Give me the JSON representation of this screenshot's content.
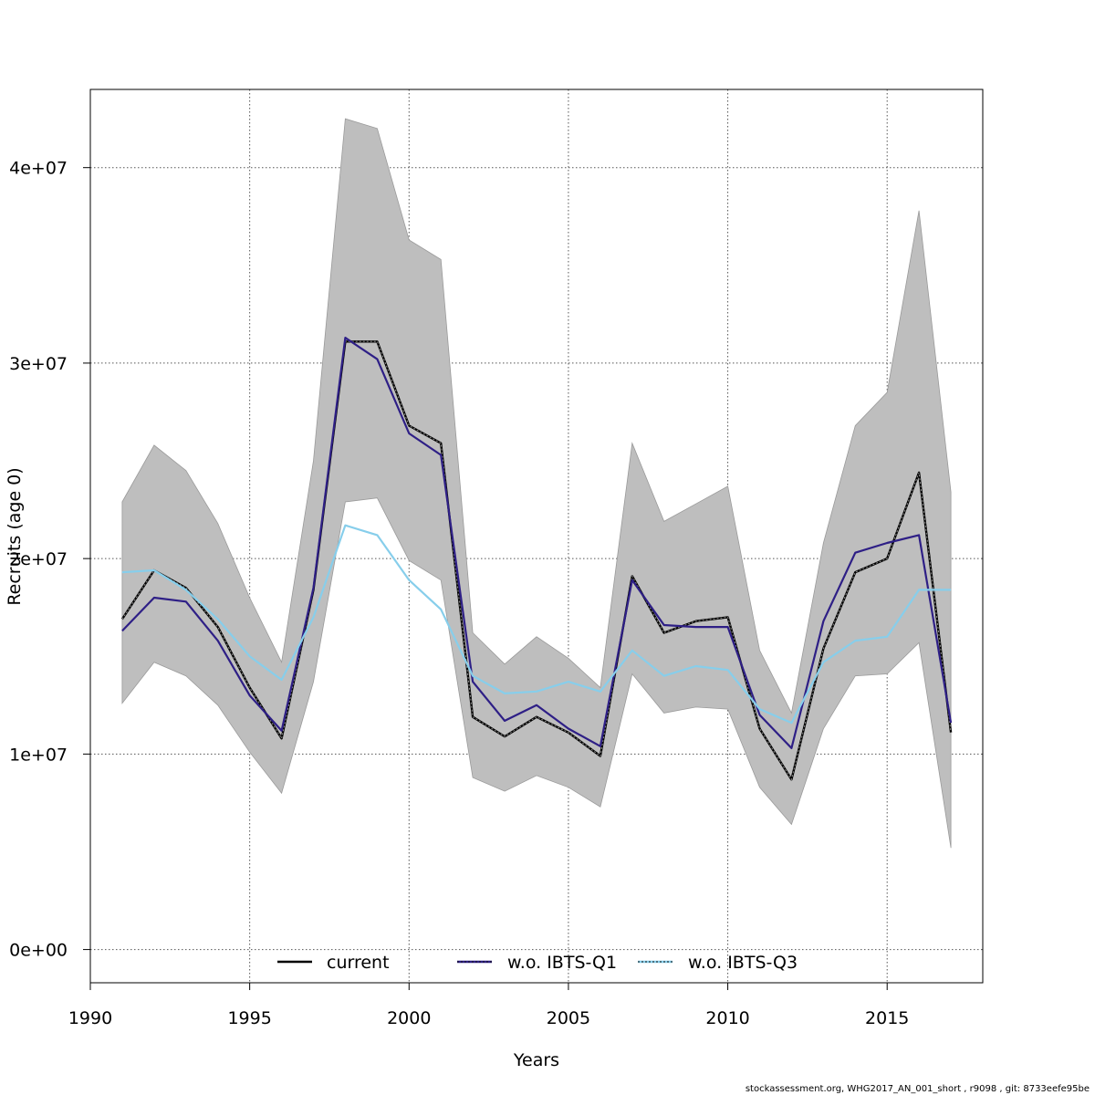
{
  "chart_data": {
    "type": "line",
    "title": "",
    "xlabel": "Years",
    "ylabel": "Recruits (age 0)",
    "xlim": [
      1990,
      2018
    ],
    "ylim": [
      -1700000,
      44000000
    ],
    "x_ticks": [
      1990,
      1995,
      2000,
      2005,
      2010,
      2015
    ],
    "x_tick_labels": [
      "1990",
      "1995",
      "2000",
      "2005",
      "2010",
      "2015"
    ],
    "y_ticks": [
      0,
      10000000,
      20000000,
      30000000,
      40000000
    ],
    "y_tick_labels": [
      "0e+00",
      "1e+07",
      "2e+07",
      "3e+07",
      "4e+07"
    ],
    "grid": true,
    "legend_position": "bottom",
    "x": [
      1991,
      1992,
      1993,
      1994,
      1995,
      1996,
      1997,
      1998,
      1999,
      2000,
      2001,
      2002,
      2003,
      2004,
      2005,
      2006,
      2007,
      2008,
      2009,
      2010,
      2011,
      2012,
      2013,
      2014,
      2015,
      2016,
      2017
    ],
    "band": {
      "color": "#bebebe",
      "lower": [
        12600000,
        14700000,
        14000000,
        12500000,
        10100000,
        8000000,
        13700000,
        22900000,
        23100000,
        19900000,
        18900000,
        8800000,
        8100000,
        8900000,
        8300000,
        7300000,
        14100000,
        12100000,
        12400000,
        12300000,
        8300000,
        6400000,
        11300000,
        14000000,
        14100000,
        15700000,
        5200000
      ],
      "upper": [
        22900000,
        25800000,
        24500000,
        21800000,
        18000000,
        14700000,
        25000000,
        42500000,
        42000000,
        36300000,
        35300000,
        16200000,
        14600000,
        16000000,
        14900000,
        13400000,
        25900000,
        21900000,
        22800000,
        23700000,
        15300000,
        12100000,
        20800000,
        26800000,
        28500000,
        37800000,
        23400000
      ]
    },
    "series": [
      {
        "name": "current",
        "color": "#000000",
        "style": "solid",
        "values": [
          16900000,
          19400000,
          18500000,
          16500000,
          13400000,
          10800000,
          18400000,
          31100000,
          31100000,
          26800000,
          25900000,
          11900000,
          10900000,
          11900000,
          11100000,
          9900000,
          19100000,
          16200000,
          16800000,
          17000000,
          11300000,
          8700000,
          15400000,
          19300000,
          20000000,
          24400000,
          11100000
        ]
      },
      {
        "name": "w.o. IBTS-Q1",
        "color": "#2e1f86",
        "style": "solid",
        "values": [
          16300000,
          18000000,
          17800000,
          15800000,
          13000000,
          11200000,
          18500000,
          31300000,
          30200000,
          26400000,
          25300000,
          13700000,
          11700000,
          12500000,
          11300000,
          10400000,
          18900000,
          16600000,
          16500000,
          16500000,
          12000000,
          10300000,
          16800000,
          20300000,
          20800000,
          21200000,
          11600000
        ]
      },
      {
        "name": "w.o. IBTS-Q3",
        "color": "#87ceeb",
        "style": "solid",
        "values": [
          19300000,
          19400000,
          18400000,
          16900000,
          15000000,
          13800000,
          17000000,
          21700000,
          21200000,
          18900000,
          17400000,
          14000000,
          13100000,
          13200000,
          13700000,
          13200000,
          15300000,
          14000000,
          14500000,
          14300000,
          12300000,
          11600000,
          14700000,
          15800000,
          16000000,
          18400000,
          18400000
        ]
      }
    ]
  },
  "footer_text": "stockassessment.org, WHG2017_AN_001_short , r9098 , git: 8733eefe95be"
}
